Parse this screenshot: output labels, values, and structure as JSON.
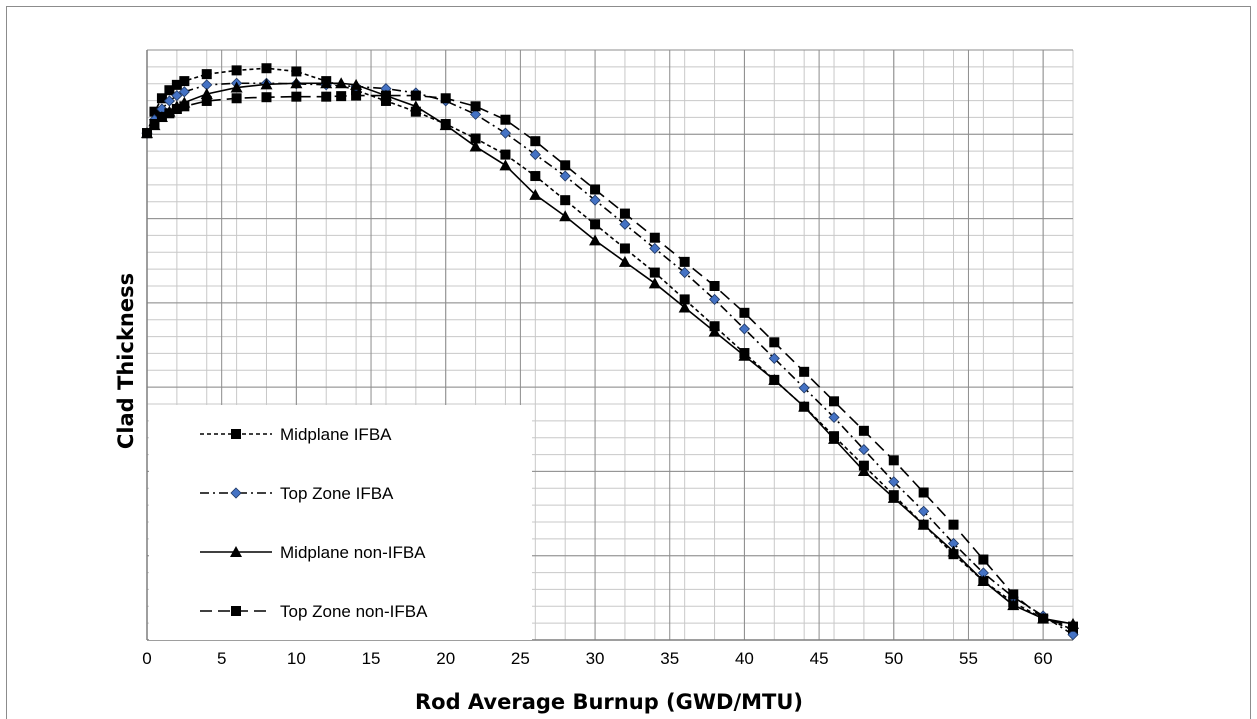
{
  "chart_data": {
    "type": "line",
    "title": "",
    "xlabel": "Rod Average Burnup (GWD/MTU)",
    "ylabel": "Clad Thickness",
    "xlim": [
      0,
      62
    ],
    "ylim": [
      0,
      11
    ],
    "x_ticks": [
      "0",
      "5",
      "10",
      "15",
      "20",
      "25",
      "30",
      "35",
      "40",
      "45",
      "50",
      "55",
      "60"
    ],
    "grid": true,
    "legend_position": "bottom-left",
    "series": [
      {
        "name": "Midplane IFBA",
        "color": "#000000",
        "marker": "square",
        "dash": "4,3",
        "x": [
          0,
          0.5,
          1,
          1.5,
          2,
          2.5,
          4,
          6,
          8,
          10,
          12,
          14,
          16,
          18,
          20,
          22,
          24,
          26,
          28,
          30,
          32,
          34,
          36,
          38,
          40,
          42,
          44,
          46,
          48,
          50,
          52,
          54,
          56,
          58,
          60,
          62
        ],
        "y": [
          9.45,
          9.85,
          10.1,
          10.25,
          10.35,
          10.42,
          10.55,
          10.62,
          10.66,
          10.6,
          10.42,
          10.25,
          10.05,
          9.85,
          9.62,
          9.35,
          9.05,
          8.65,
          8.2,
          7.75,
          7.3,
          6.85,
          6.35,
          5.85,
          5.35,
          4.85,
          4.35,
          3.8,
          3.25,
          2.7,
          2.15,
          1.6,
          1.1,
          0.7,
          0.4,
          0.2
        ]
      },
      {
        "name": "Top Zone IFBA",
        "color": "#4472c4",
        "marker": "diamond",
        "dash": "9,4,2,4",
        "x": [
          0,
          0.5,
          1,
          1.5,
          2,
          2.5,
          4,
          6,
          8,
          10,
          12,
          14,
          16,
          18,
          20,
          22,
          24,
          26,
          28,
          30,
          32,
          34,
          36,
          38,
          40,
          42,
          44,
          46,
          48,
          50,
          52,
          54,
          56,
          58,
          60,
          62
        ],
        "y": [
          9.45,
          9.7,
          9.9,
          10.05,
          10.15,
          10.22,
          10.35,
          10.38,
          10.38,
          10.37,
          10.35,
          10.32,
          10.28,
          10.2,
          10.05,
          9.8,
          9.45,
          9.05,
          8.65,
          8.2,
          7.75,
          7.3,
          6.85,
          6.35,
          5.8,
          5.25,
          4.7,
          4.15,
          3.55,
          2.95,
          2.4,
          1.8,
          1.25,
          0.8,
          0.45,
          0.1
        ]
      },
      {
        "name": "Midplane non-IFBA",
        "color": "#000000",
        "marker": "triangle",
        "dash": "",
        "x": [
          0,
          0.5,
          1,
          1.5,
          2,
          2.5,
          4,
          6,
          8,
          10,
          12,
          13,
          14,
          16,
          18,
          20,
          22,
          24,
          26,
          28,
          30,
          32,
          34,
          36,
          38,
          40,
          42,
          44,
          46,
          48,
          50,
          52,
          54,
          56,
          58,
          60,
          62
        ],
        "y": [
          9.45,
          9.6,
          9.75,
          9.85,
          9.95,
          10.02,
          10.18,
          10.3,
          10.36,
          10.38,
          10.38,
          10.38,
          10.35,
          10.15,
          9.95,
          9.6,
          9.2,
          8.85,
          8.3,
          7.9,
          7.45,
          7.05,
          6.65,
          6.2,
          5.75,
          5.3,
          4.85,
          4.35,
          3.75,
          3.15,
          2.65,
          2.15,
          1.65,
          1.1,
          0.65,
          0.4,
          0.3
        ]
      },
      {
        "name": "Top Zone non-IFBA",
        "color": "#000000",
        "marker": "square",
        "dash": "12,6",
        "x": [
          0,
          0.5,
          1,
          1.5,
          2,
          2.5,
          4,
          6,
          8,
          10,
          12,
          13,
          14,
          16,
          18,
          20,
          22,
          24,
          26,
          28,
          30,
          32,
          34,
          36,
          38,
          40,
          42,
          44,
          46,
          48,
          50,
          52,
          54,
          56,
          58,
          60,
          62
        ],
        "y": [
          9.45,
          9.62,
          9.75,
          9.82,
          9.9,
          9.95,
          10.05,
          10.1,
          10.12,
          10.13,
          10.13,
          10.14,
          10.15,
          10.15,
          10.15,
          10.1,
          9.95,
          9.7,
          9.3,
          8.85,
          8.4,
          7.95,
          7.5,
          7.05,
          6.6,
          6.1,
          5.55,
          5.0,
          4.45,
          3.9,
          3.35,
          2.75,
          2.15,
          1.5,
          0.85,
          0.4,
          0.25
        ]
      }
    ]
  }
}
